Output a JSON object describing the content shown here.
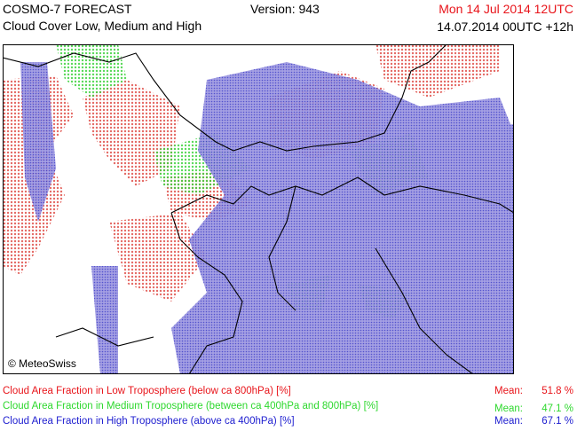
{
  "header": {
    "title": "COSMO-7 FORECAST",
    "subtitle": "Cloud Cover Low, Medium and High",
    "version": "Version: 943",
    "valid_time": "Mon 14 Jul 2014 12UTC",
    "run_time": "14.07.2014 00UTC +12h"
  },
  "map": {
    "credit": "© MeteoSwiss"
  },
  "legend": [
    {
      "label": "Cloud Area Fraction in Low Troposphere (below ca 800hPa) [%]",
      "mean_label": "Mean:",
      "mean": "51.8 %"
    },
    {
      "label": "Cloud Area Fraction in Medium Troposphere (between ca 400hPa and 800hPa) [%]",
      "mean_label": "Mean:",
      "mean": "47.1 %"
    },
    {
      "label": "Cloud Area Fraction in High Troposphere (above ca 400hPa) [%]",
      "mean_label": "Mean:",
      "mean": "67.1 %"
    }
  ]
}
